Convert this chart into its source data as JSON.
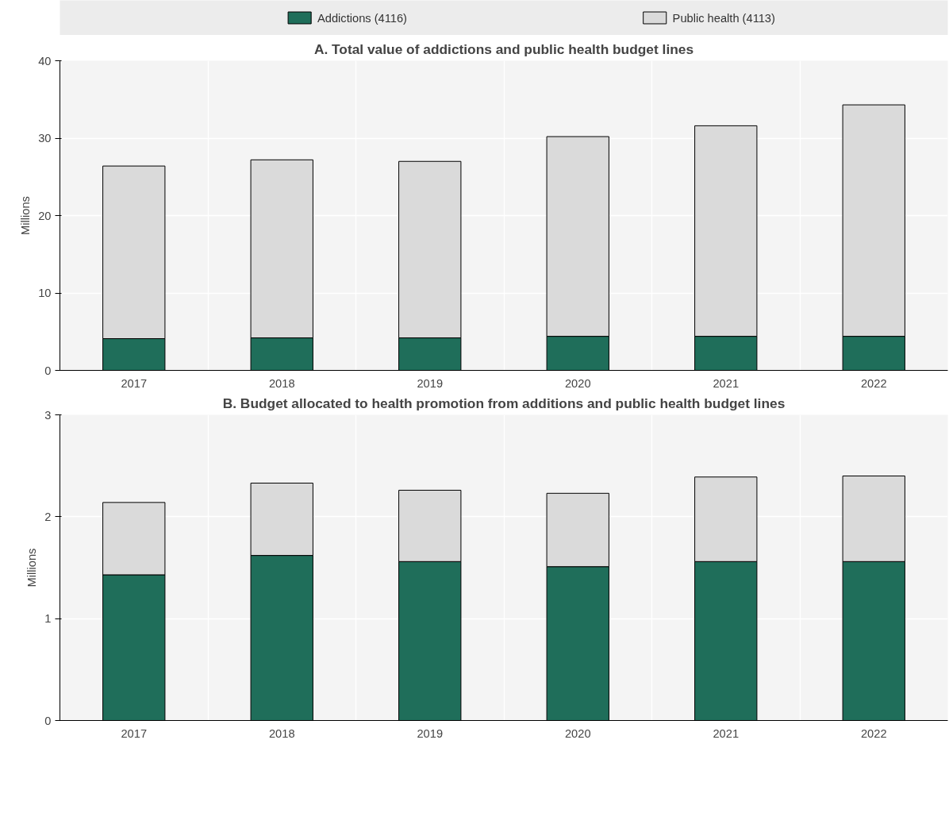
{
  "chart_data": [
    {
      "type": "bar",
      "title": "A. Total value of addictions and public health budget lines",
      "ylabel": "Millions",
      "categories": [
        "2017",
        "2018",
        "2019",
        "2020",
        "2021",
        "2022"
      ],
      "stacked": true,
      "ylim": [
        0,
        40
      ],
      "yticks": [
        0,
        10,
        20,
        30,
        40
      ],
      "grid": true,
      "legend": "top",
      "series": [
        {
          "name": "Addictions (4116)",
          "color": "#1f6e5a",
          "values": [
            4.1,
            4.2,
            4.2,
            4.4,
            4.4,
            4.4
          ]
        },
        {
          "name": "Public health (4113)",
          "color": "#dadada",
          "values": [
            22.3,
            23.0,
            22.8,
            25.8,
            27.2,
            29.9
          ]
        }
      ]
    },
    {
      "type": "bar",
      "title": "B. Budget allocated to health promotion from additions and public health budget lines",
      "ylabel": "Millions",
      "categories": [
        "2017",
        "2018",
        "2019",
        "2020",
        "2021",
        "2022"
      ],
      "stacked": true,
      "ylim": [
        0,
        3
      ],
      "yticks": [
        0,
        1,
        2,
        3
      ],
      "grid": true,
      "series": [
        {
          "color": "#1f6e5a",
          "values": [
            1.43,
            1.62,
            1.56,
            1.51,
            1.56,
            1.56
          ]
        },
        {
          "color": "#dadada",
          "values": [
            0.71,
            0.71,
            0.7,
            0.72,
            0.83,
            0.84
          ]
        }
      ]
    }
  ]
}
